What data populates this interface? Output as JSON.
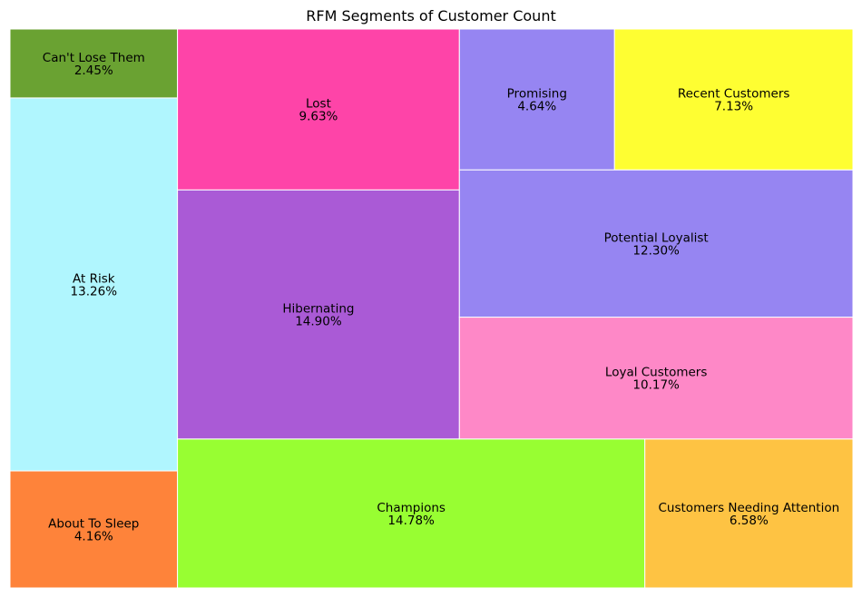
{
  "chart_data": {
    "type": "treemap",
    "title": "RFM Segments of Customer Count",
    "unit": "%",
    "segments": [
      {
        "name": "Can't Lose Them",
        "value": 2.45,
        "label": "2.45%",
        "color": "#6aa232"
      },
      {
        "name": "At Risk",
        "value": 13.26,
        "label": "13.26%",
        "color": "#b0f6fe"
      },
      {
        "name": "About To Sleep",
        "value": 4.16,
        "label": "4.16%",
        "color": "#fe833a"
      },
      {
        "name": "Lost",
        "value": 9.63,
        "label": "9.63%",
        "color": "#fe44a8"
      },
      {
        "name": "Hibernating",
        "value": 14.9,
        "label": "14.90%",
        "color": "#aa5ad6"
      },
      {
        "name": "Champions",
        "value": 14.78,
        "label": "14.78%",
        "color": "#98fe32"
      },
      {
        "name": "Promising",
        "value": 4.64,
        "label": "4.64%",
        "color": "#9685f2"
      },
      {
        "name": "Recent Customers",
        "value": 7.13,
        "label": "7.13%",
        "color": "#fefe32"
      },
      {
        "name": "Potential Loyalist",
        "value": 12.3,
        "label": "12.30%",
        "color": "#9685f2"
      },
      {
        "name": "Loyal Customers",
        "value": 10.17,
        "label": "10.17%",
        "color": "#fe88c7"
      },
      {
        "name": "Customers Needing Attention",
        "value": 6.58,
        "label": "6.58%",
        "color": "#fec343"
      }
    ]
  }
}
